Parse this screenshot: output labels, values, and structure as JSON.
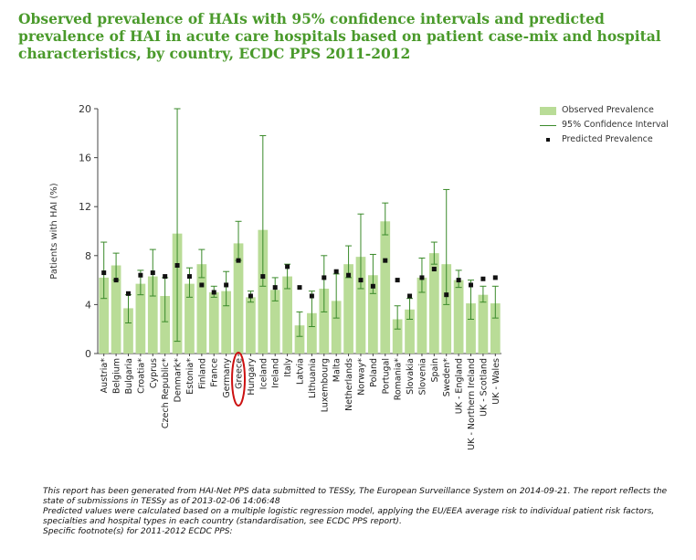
{
  "title": "Observed prevalence of HAIs with 95% confidence intervals and predicted prevalence of HAI in acute care hospitals based on patient case-mix and hospital characteristics, by country, ECDC PPS 2011-2012",
  "legend": {
    "observed": "Observed Prevalence",
    "ci": "95% Confidence Interval",
    "predicted": "Predicted Prevalence"
  },
  "footnote": {
    "line1": "This report has been generated from HAI-Net PPS data submitted to TESSy, The European Surveillance System on 2014-09-21. The report reflects the state of submissions in TESSy as of 2013-02-06 14:06:48",
    "line2": "Predicted values were calculated based on a multiple logistic regression model, applying the EU/EEA average risk to individual patient risk factors, specialties and hospital types in each country (standardisation, see ECDC PPS report).",
    "line3": "Specific footnote(s) for 2011-2012 ECDC PPS:"
  },
  "colors": {
    "bar": "#b9dc97",
    "ci": "#3a8a2a",
    "predicted": "#111111",
    "highlight": "#cc1111"
  },
  "chart_data": {
    "type": "bar",
    "title": "Observed prevalence of HAIs with 95% confidence intervals and predicted prevalence of HAI in acute care hospitals based on patient case-mix and hospital characteristics, by country, ECDC PPS 2011-2012",
    "ylabel": "Patients with HAI (%)",
    "xlabel": "",
    "ylim": [
      0,
      20
    ],
    "yticks": [
      0,
      4,
      8,
      12,
      16,
      20
    ],
    "grid": false,
    "legend_position": "top-right",
    "highlighted_category": "Greece",
    "categories": [
      "Austria*",
      "Belgium",
      "Bulgaria",
      "Croatia*",
      "Cyprus",
      "Czech Republic*",
      "Denmark*",
      "Estonia*",
      "Finland",
      "France",
      "Germany",
      "Greece",
      "Hungary",
      "Iceland",
      "Ireland",
      "Italy",
      "Latvia",
      "Lithuania",
      "Luxembourg",
      "Malta",
      "Netherlands",
      "Norway*",
      "Poland",
      "Portugal",
      "Romania*",
      "Slovakia",
      "Slovenia",
      "Spain",
      "Sweden*",
      "UK - England",
      "UK - Northern Ireland",
      "UK - Scotland",
      "UK - Wales"
    ],
    "series": [
      {
        "name": "Observed Prevalence",
        "values": [
          6.2,
          7.2,
          3.7,
          5.7,
          6.3,
          4.7,
          9.8,
          5.7,
          7.3,
          5.0,
          5.1,
          9.0,
          4.6,
          10.1,
          5.2,
          6.3,
          2.3,
          3.3,
          5.3,
          4.3,
          7.3,
          7.9,
          6.4,
          10.8,
          2.8,
          3.6,
          6.2,
          8.2,
          7.3,
          6.0,
          4.1,
          4.8,
          4.1
        ]
      },
      {
        "name": "95% Confidence Interval",
        "lower": [
          4.5,
          6.0,
          2.5,
          4.8,
          4.7,
          2.6,
          1.0,
          4.6,
          6.2,
          4.6,
          3.9,
          7.6,
          4.2,
          5.5,
          4.3,
          5.3,
          1.4,
          2.2,
          3.4,
          2.9,
          6.2,
          5.3,
          4.9,
          9.7,
          2.0,
          2.8,
          5.0,
          7.3,
          4.0,
          5.4,
          2.8,
          4.2,
          2.9
        ],
        "upper": [
          9.1,
          8.2,
          4.8,
          6.8,
          8.5,
          6.2,
          20.0,
          7.0,
          8.5,
          5.5,
          6.7,
          10.8,
          5.1,
          17.8,
          6.2,
          7.3,
          3.4,
          5.1,
          8.0,
          6.5,
          8.8,
          11.4,
          8.1,
          12.3,
          3.9,
          4.5,
          7.8,
          9.1,
          13.4,
          6.8,
          6.0,
          5.5,
          5.5
        ]
      },
      {
        "name": "Predicted Prevalence",
        "values": [
          6.6,
          6.0,
          4.9,
          6.4,
          6.6,
          6.3,
          7.2,
          6.3,
          5.6,
          5.0,
          5.6,
          7.6,
          4.7,
          6.3,
          5.4,
          7.1,
          5.4,
          4.7,
          6.2,
          6.7,
          6.4,
          6.0,
          5.5,
          7.6,
          6.0,
          4.7,
          6.2,
          6.9,
          4.8,
          6.0,
          5.6,
          6.1,
          6.2
        ]
      }
    ]
  }
}
